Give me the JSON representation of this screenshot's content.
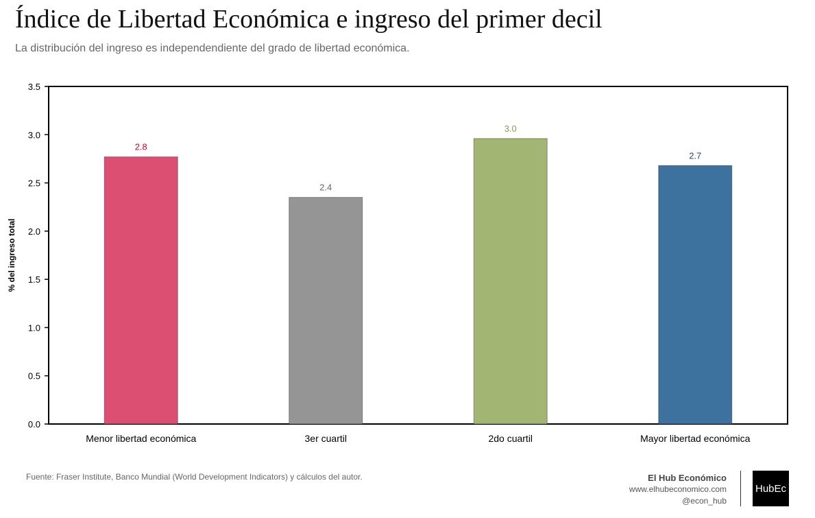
{
  "title": "Índice de Libertad Económica e ingreso del primer decil",
  "subtitle": "La distribución del ingreso es independendiente del grado de libertad económica.",
  "source": "Fuente: Fraser Institute, Banco Mundial (World Development Indicators) y cálculos del autor.",
  "brand": {
    "name": "El Hub Económico",
    "url": "www.elhubeconomico.com",
    "handle": "@econ_hub",
    "logo_text": "HubEc"
  },
  "chart_data": {
    "type": "bar",
    "categories": [
      "Menor libertad económica",
      "3er cuartil",
      "2do cuartil",
      "Mayor libertad económica"
    ],
    "values": [
      2.77,
      2.35,
      2.96,
      2.68
    ],
    "data_labels": [
      "2.8",
      "2.4",
      "3.0",
      "2.7"
    ],
    "colors": [
      "#dc4e72",
      "#959595",
      "#a2b573",
      "#3e729e"
    ],
    "label_colors": [
      "#e0002b",
      "#666666",
      "#8a9a55",
      "#1f497d"
    ],
    "xlabel": "",
    "ylabel": "% del ingreso total",
    "ylim": [
      0,
      3.5
    ],
    "yticks": [
      "0.0",
      "0.5",
      "1.0",
      "1.5",
      "2.0",
      "2.5",
      "3.0",
      "3.5"
    ],
    "grid": false,
    "legend": "none"
  }
}
